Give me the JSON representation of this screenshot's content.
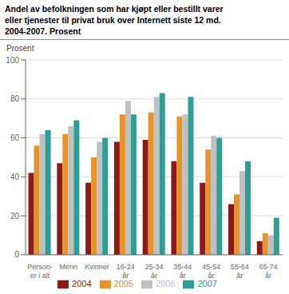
{
  "chart_data": {
    "type": "bar",
    "title": "Andel av befolkningen som har kjøpt eller bestillt varer\neller tjenester til privat bruk over Internett siste 12 md.\n2004-2007. Prosent",
    "ylabel": "Prosent",
    "categories": [
      "Person-\ner i alt",
      "Menn",
      "Kvinner",
      "16-24\når",
      "25-34\når",
      "35-44\når",
      "45-54\når",
      "55-64\når",
      "65-74\når"
    ],
    "series": [
      {
        "name": "2004",
        "color": "#8B1A1A",
        "values": [
          42,
          47,
          37,
          58,
          59,
          48,
          37,
          26,
          7
        ]
      },
      {
        "name": "2005",
        "color": "#E8922A",
        "values": [
          56,
          62,
          50,
          72,
          73,
          71,
          54,
          31,
          11
        ]
      },
      {
        "name": "2006",
        "color": "#C0C0C0",
        "values": [
          62,
          66,
          58,
          79,
          81,
          72,
          61,
          43,
          10
        ]
      },
      {
        "name": "2007",
        "color": "#2E9E96",
        "values": [
          64,
          69,
          60,
          72,
          83,
          81,
          60,
          48,
          19
        ]
      }
    ],
    "ylim": [
      0,
      100
    ],
    "yticks": [
      0,
      20,
      40,
      60,
      80,
      100
    ],
    "grid": true,
    "legend": "bottom"
  }
}
